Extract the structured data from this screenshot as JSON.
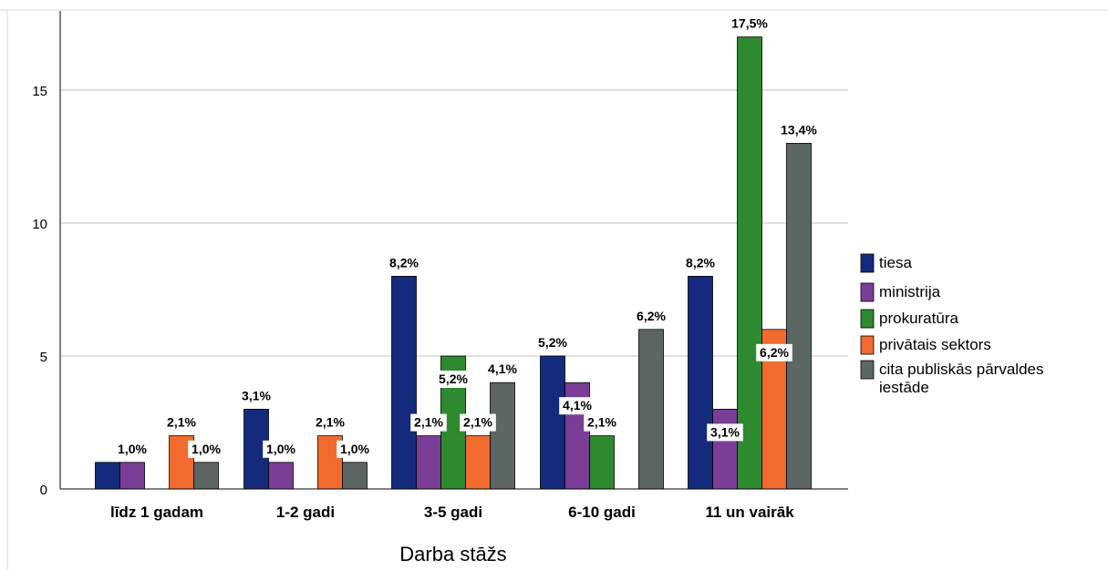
{
  "chart_data": {
    "type": "bar",
    "title": "",
    "xlabel": "Darba stāžs",
    "ylabel": "",
    "ylim": [
      0,
      18
    ],
    "yticks": [
      0,
      5,
      10,
      15
    ],
    "grid": true,
    "legend_position": "right",
    "categories": [
      "līdz 1 gadam",
      "1-2 gadi",
      "3-5 gadi",
      "6-10 gadi",
      "11 un vairāk"
    ],
    "series": [
      {
        "name": "tiesa",
        "color": "#142a7c",
        "values": [
          1,
          3,
          8,
          5,
          8
        ],
        "labels": [
          "",
          "3,1%",
          "8,2%",
          "5,2%",
          "8,2%"
        ]
      },
      {
        "name": "ministrija",
        "color": "#7a3e96",
        "values": [
          1,
          1,
          2,
          4,
          3
        ],
        "labels": [
          "1,0%",
          "1,0%",
          "2,1%",
          "4,1%",
          "3,1%"
        ]
      },
      {
        "name": "prokuratūra",
        "color": "#2e8a2e",
        "values": [
          0,
          0,
          5,
          2,
          17
        ],
        "labels": [
          "",
          "",
          "5,2%",
          "2,1%",
          "17,5%"
        ]
      },
      {
        "name": "privātais sektors",
        "color": "#f26b2e",
        "values": [
          2,
          2,
          2,
          0,
          6
        ],
        "labels": [
          "2,1%",
          "2,1%",
          "2,1%",
          "",
          "6,2%"
        ]
      },
      {
        "name": "cita publiskās pārvaldes iestāde",
        "color": "#5c6662",
        "values": [
          1,
          1,
          4,
          6,
          13
        ],
        "labels": [
          "1,0%",
          "1,0%",
          "4,1%",
          "6,2%",
          "13,4%"
        ]
      }
    ]
  }
}
